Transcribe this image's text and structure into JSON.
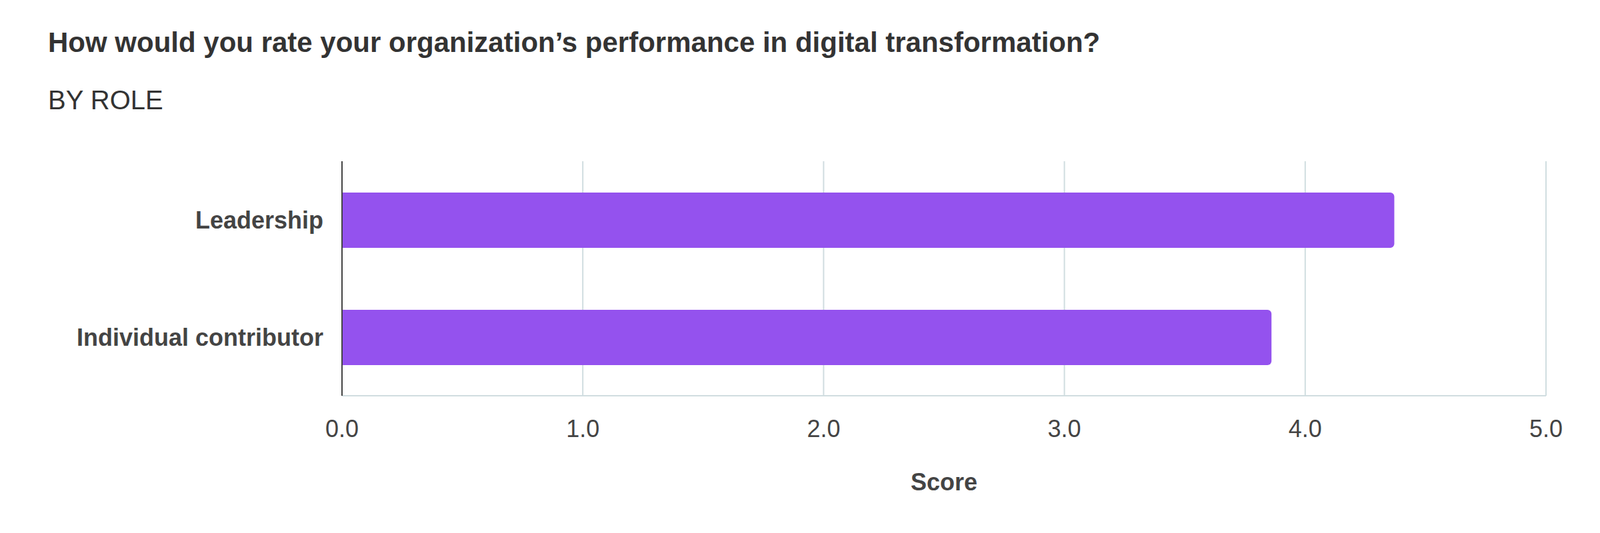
{
  "chart_data": {
    "type": "bar",
    "title": "How would you rate your organization’s performance in digital transformation?",
    "subtitle": "BY ROLE",
    "orientation": "horizontal",
    "categories": [
      "Leadership",
      "Individual contributor"
    ],
    "values": [
      4.37,
      3.86
    ],
    "color": "#9452ee",
    "x_label": "Score",
    "xlim": [
      0,
      5
    ],
    "xticks": [
      {
        "value": 0,
        "label": "0.0"
      },
      {
        "value": 1,
        "label": "1.0"
      },
      {
        "value": 2,
        "label": "2.0"
      },
      {
        "value": 3,
        "label": "3.0"
      },
      {
        "value": 4,
        "label": "4.0"
      },
      {
        "value": 5,
        "label": "5.0"
      }
    ],
    "grid": true
  }
}
